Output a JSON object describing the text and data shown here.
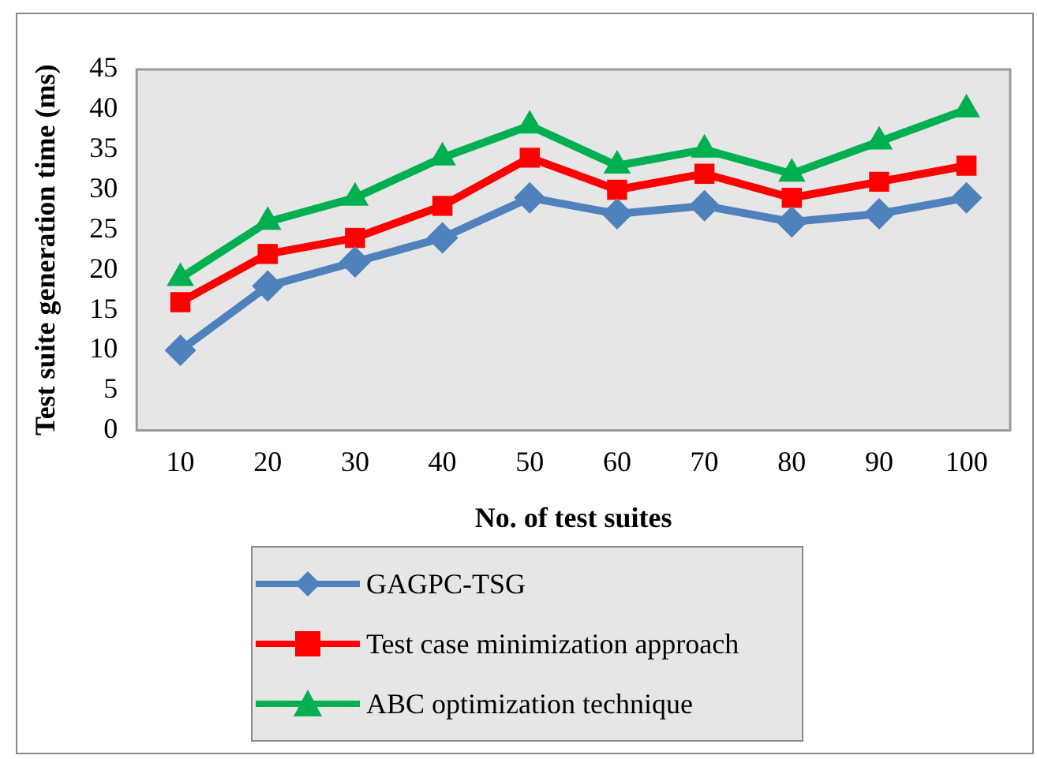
{
  "chart_data": {
    "type": "line",
    "xlabel": "No. of test suites",
    "ylabel": "Test suite generation time (ms)",
    "categories": [
      "10",
      "20",
      "30",
      "40",
      "50",
      "60",
      "70",
      "80",
      "90",
      "100"
    ],
    "series": [
      {
        "name": "GAGPC-TSG",
        "color": "#4f81bd",
        "marker": "diamond",
        "values": [
          10,
          18,
          21,
          24,
          29,
          27,
          28,
          26,
          27,
          29
        ]
      },
      {
        "name": "Test case minimization approach",
        "color": "#ff0000",
        "marker": "square",
        "values": [
          16,
          22,
          24,
          28,
          34,
          30,
          32,
          29,
          31,
          33
        ]
      },
      {
        "name": "ABC optimization technique",
        "color": "#00b050",
        "marker": "triangle",
        "values": [
          19,
          26,
          29,
          34,
          38,
          33,
          35,
          32,
          36,
          40
        ]
      }
    ],
    "ylim": [
      0,
      45
    ],
    "yticks": [
      0,
      5,
      10,
      15,
      20,
      25,
      30,
      35,
      40,
      45
    ],
    "grid": false,
    "legend": "bottom"
  }
}
